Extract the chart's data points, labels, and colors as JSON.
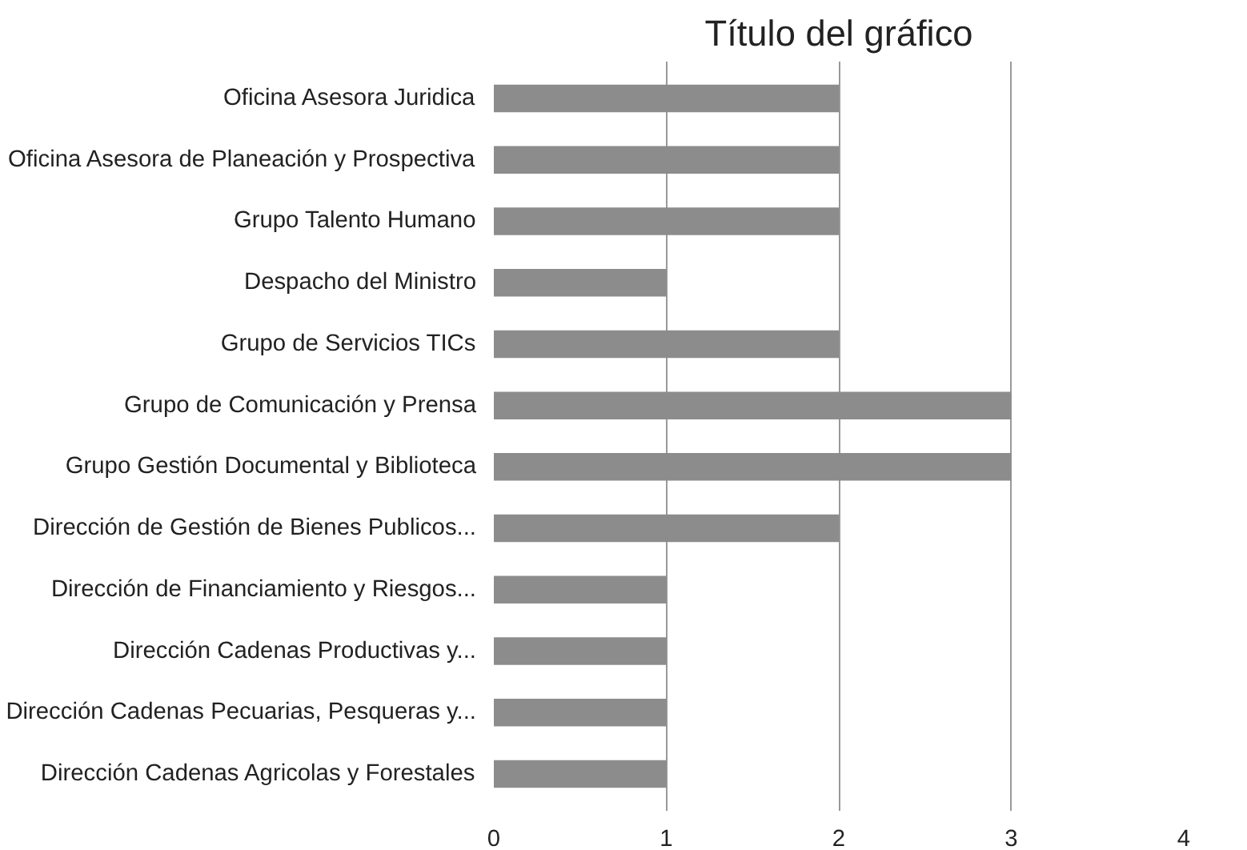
{
  "chart_data": {
    "type": "bar",
    "orientation": "horizontal",
    "title": "Título del gráfico",
    "categories": [
      "Oficina Asesora Juridica",
      "Oficina Asesora de Planeación y Prospectiva",
      "Grupo Talento Humano",
      "Despacho del Ministro",
      "Grupo de Servicios TICs",
      "Grupo de Comunicación y Prensa",
      "Grupo Gestión Documental y Biblioteca",
      "Dirección de Gestión de Bienes Publicos...",
      "Dirección de Financiamiento y Riesgos...",
      "Dirección Cadenas Productivas y...",
      "Dirección Cadenas Pecuarias, Pesqueras y...",
      "Dirección Cadenas Agricolas y Forestales"
    ],
    "values": [
      2,
      2,
      2,
      1,
      2,
      3,
      3,
      2,
      1,
      1,
      1,
      1
    ],
    "color": "#8c8c8c",
    "xlim": [
      0,
      4
    ],
    "xticks": [
      0,
      1,
      2,
      3,
      4
    ],
    "grid": "x"
  }
}
